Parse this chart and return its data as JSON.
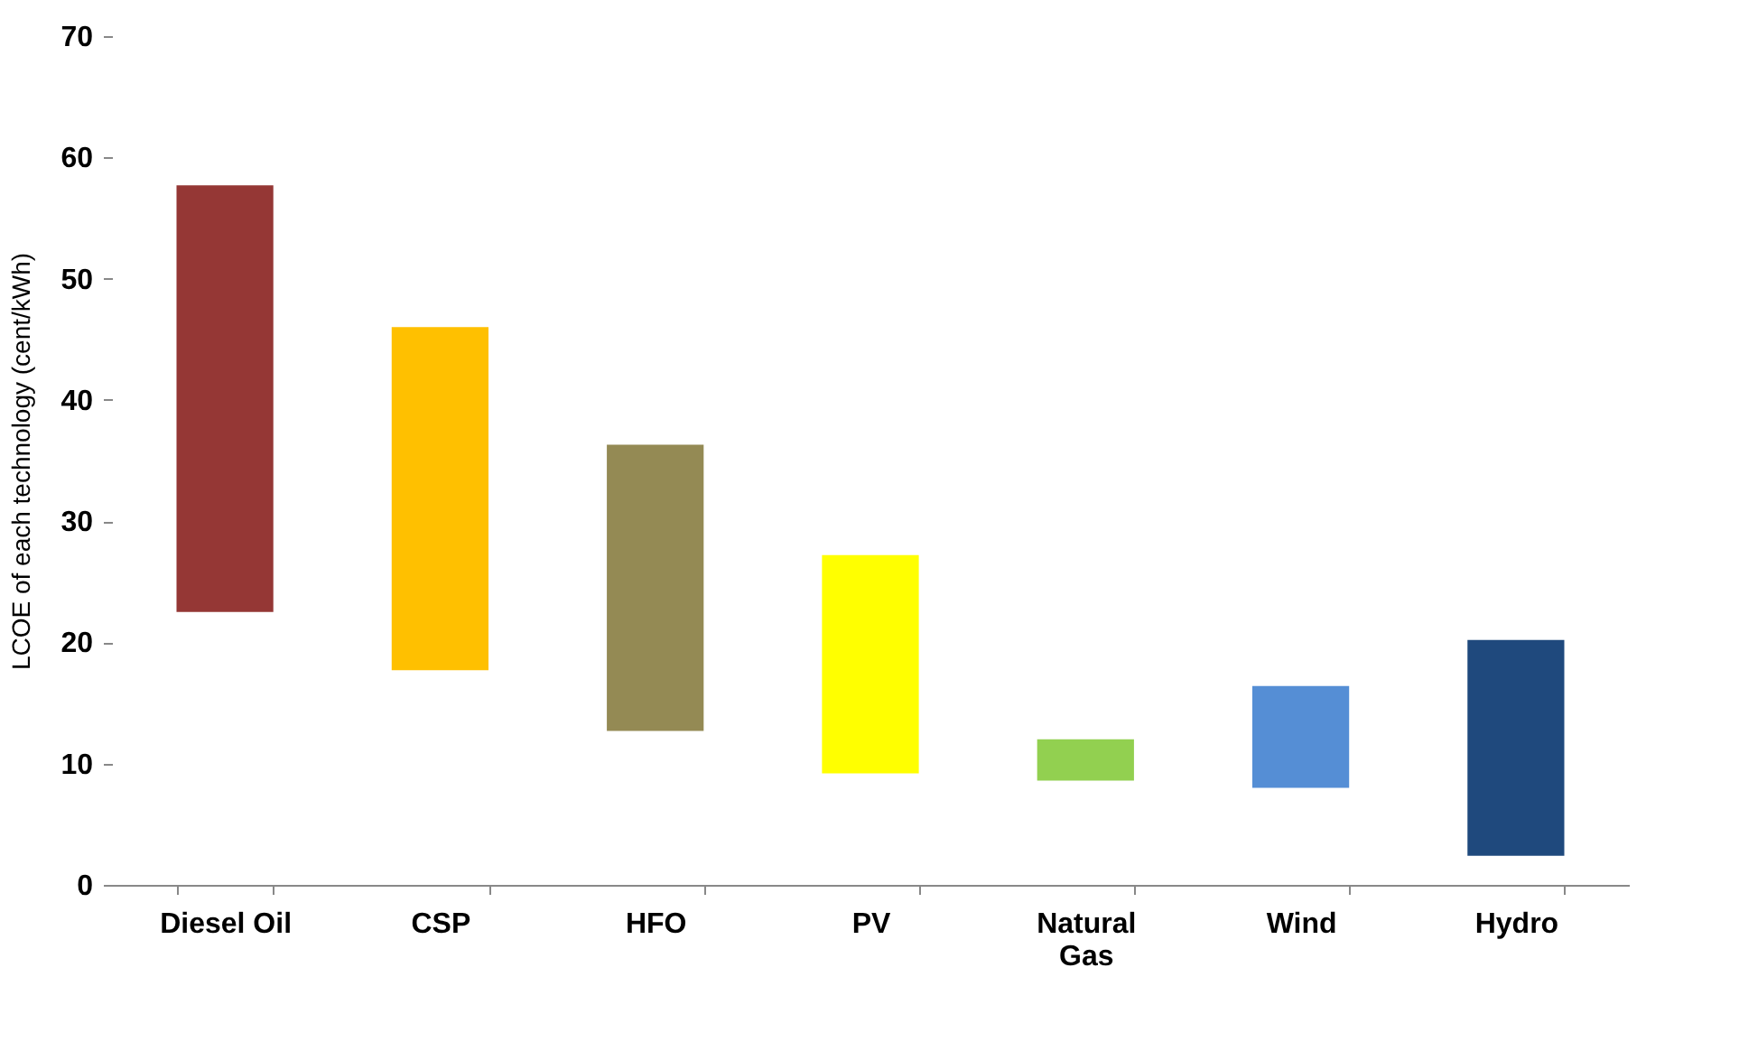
{
  "chart_data": {
    "type": "bar",
    "ylabel": "LCOE of each technology (cent/kWh)",
    "categories": [
      "Diesel Oil",
      "CSP",
      "HFO",
      "PV",
      "Natural Gas",
      "Wind",
      "Hydro"
    ],
    "base": [
      22.5,
      17.7,
      12.7,
      9.2,
      8.6,
      8.0,
      2.4
    ],
    "values": [
      35.2,
      28.3,
      23.6,
      18.0,
      3.4,
      8.4,
      17.8
    ],
    "colors": [
      "#953735",
      "#ffc000",
      "#948a54",
      "#ffff00",
      "#92d050",
      "#558ed5",
      "#1f497d"
    ],
    "ylim": [
      0,
      70
    ],
    "yticks": [
      0,
      10,
      20,
      30,
      40,
      50,
      60,
      70
    ],
    "grid": false
  }
}
